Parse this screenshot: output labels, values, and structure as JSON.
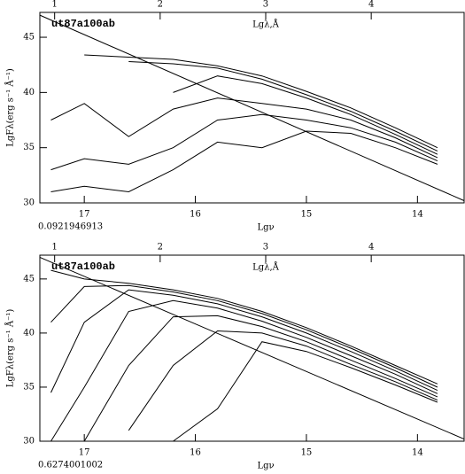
{
  "chart_data": [
    {
      "type": "line",
      "title": "ut87a100ab",
      "x_label": "Lgν",
      "x2_label": "Lgλ,Å",
      "y_label": "LgFλ(erg s⁻¹ Å⁻¹)",
      "annotation": "0.0921946913",
      "x": [
        17.3,
        17.0,
        16.6,
        16.2,
        15.8,
        15.4,
        15.0,
        14.6,
        14.2,
        13.82
      ],
      "xlim": [
        17.4,
        13.58
      ],
      "xticks": [
        17,
        16,
        15,
        14
      ],
      "x2lim": [
        0.86,
        4.88
      ],
      "x2ticks": [
        1,
        2,
        3,
        4
      ],
      "ylim": [
        30,
        47.25
      ],
      "yticks": [
        30,
        35,
        40,
        45
      ],
      "color": "#000000",
      "series": [
        {
          "values": [
            null,
            43.4,
            43.2,
            43.0,
            42.4,
            41.5,
            40.1,
            38.6,
            36.8,
            35.0
          ]
        },
        {
          "values": [
            null,
            null,
            42.8,
            42.6,
            42.2,
            41.2,
            39.8,
            38.3,
            36.5,
            34.7
          ]
        },
        {
          "values": [
            null,
            null,
            null,
            40.0,
            41.5,
            40.8,
            39.5,
            38.0,
            36.2,
            34.4
          ]
        },
        {
          "values": [
            37.5,
            39.0,
            36.0,
            38.5,
            39.5,
            39.0,
            38.5,
            37.5,
            35.9,
            34.1
          ]
        },
        {
          "values": [
            33.0,
            34.0,
            33.5,
            35.0,
            37.5,
            38.0,
            37.5,
            36.8,
            35.5,
            33.8
          ]
        },
        {
          "values": [
            31.0,
            31.5,
            31.0,
            33.0,
            35.5,
            35.0,
            36.5,
            36.3,
            35.0,
            33.5
          ]
        }
      ],
      "reference_line": {
        "x": [
          17.4,
          13.58
        ],
        "values": [
          47.0,
          30.2
        ]
      }
    },
    {
      "type": "line",
      "title": "ut87a100ab",
      "x_label": "Lgν",
      "x2_label": "Lgλ,Å",
      "y_label": "LgFλ(erg s⁻¹ Å⁻¹)",
      "annotation": "0.6274001002",
      "x": [
        17.3,
        17.0,
        16.6,
        16.2,
        15.8,
        15.4,
        15.0,
        14.6,
        14.2,
        13.82
      ],
      "xlim": [
        17.4,
        13.58
      ],
      "xticks": [
        17,
        16,
        15,
        14
      ],
      "x2lim": [
        0.86,
        4.88
      ],
      "x2ticks": [
        1,
        2,
        3,
        4
      ],
      "ylim": [
        30,
        47.2
      ],
      "yticks": [
        30,
        35,
        40,
        45
      ],
      "color": "#000000",
      "series": [
        {
          "values": [
            45.8,
            45.0,
            44.6,
            44.0,
            43.2,
            42.0,
            40.5,
            38.8,
            37.0,
            35.3
          ]
        },
        {
          "values": [
            41.0,
            44.3,
            44.4,
            43.8,
            43.0,
            41.8,
            40.3,
            38.6,
            36.8,
            35.0
          ]
        },
        {
          "values": [
            34.5,
            41.0,
            44.0,
            43.5,
            42.7,
            41.5,
            40.0,
            38.3,
            36.5,
            34.7
          ]
        },
        {
          "values": [
            30.0,
            35.0,
            42.0,
            43.0,
            42.3,
            41.1,
            39.6,
            37.9,
            36.2,
            34.4
          ]
        },
        {
          "values": [
            null,
            30.0,
            37.0,
            41.5,
            41.6,
            40.6,
            39.2,
            37.5,
            35.8,
            34.1
          ]
        },
        {
          "values": [
            null,
            null,
            31.0,
            37.0,
            40.2,
            40.0,
            38.8,
            37.1,
            35.5,
            33.8
          ]
        },
        {
          "values": [
            null,
            null,
            null,
            30.0,
            33.0,
            39.2,
            38.3,
            36.8,
            35.2,
            33.6
          ]
        }
      ],
      "reference_line": {
        "x": [
          17.4,
          13.58
        ],
        "values": [
          47.0,
          30.2
        ]
      }
    }
  ]
}
